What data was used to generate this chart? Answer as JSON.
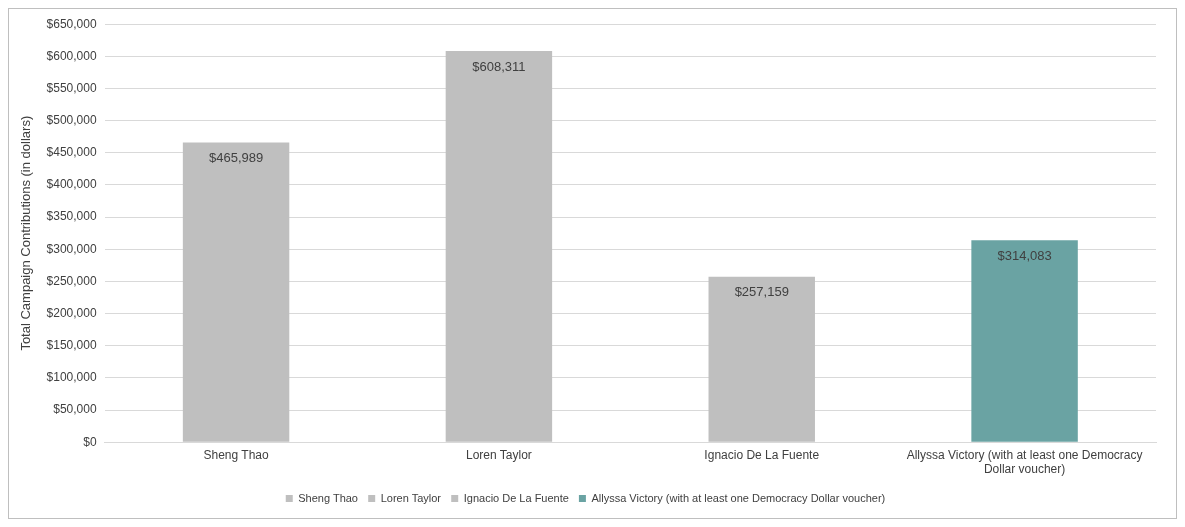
{
  "chart_data": {
    "type": "bar",
    "ylabel": "Total Campaign Contributions (in dollars)",
    "categories": [
      "Sheng Thao",
      "Loren Taylor",
      "Ignacio De La Fuente",
      "Allyssa Victory (with at least one Democracy Dollar voucher)"
    ],
    "series": [
      {
        "name": "Sheng Thao",
        "color": "#bfbfbf",
        "values": [
          465989,
          null,
          null,
          null
        ],
        "value_labels": [
          "$465,989",
          null,
          null,
          null
        ]
      },
      {
        "name": "Loren Taylor",
        "color": "#bfbfbf",
        "values": [
          null,
          608311,
          null,
          null
        ],
        "value_labels": [
          null,
          "$608,311",
          null,
          null
        ]
      },
      {
        "name": "Ignacio De La Fuente",
        "color": "#bfbfbf",
        "values": [
          null,
          null,
          257159,
          null
        ],
        "value_labels": [
          null,
          null,
          "$257,159",
          null
        ]
      },
      {
        "name": "Allyssa Victory (with at least one Democracy Dollar voucher)",
        "color": "#6aa3a3",
        "values": [
          null,
          null,
          null,
          314083
        ],
        "value_labels": [
          null,
          null,
          null,
          "$314,083"
        ]
      }
    ],
    "ylim": [
      0,
      650000
    ],
    "yticks": [
      {
        "value": 0,
        "label": "$0"
      },
      {
        "value": 50000,
        "label": "$50,000"
      },
      {
        "value": 100000,
        "label": "$100,000"
      },
      {
        "value": 150000,
        "label": "$150,000"
      },
      {
        "value": 200000,
        "label": "$200,000"
      },
      {
        "value": 250000,
        "label": "$250,000"
      },
      {
        "value": 300000,
        "label": "$300,000"
      },
      {
        "value": 350000,
        "label": "$350,000"
      },
      {
        "value": 400000,
        "label": "$400,000"
      },
      {
        "value": 450000,
        "label": "$450,000"
      },
      {
        "value": 500000,
        "label": "$500,000"
      },
      {
        "value": 550000,
        "label": "$550,000"
      },
      {
        "value": 600000,
        "label": "$600,000"
      },
      {
        "value": 650000,
        "label": "$650,000"
      }
    ],
    "grid": "y",
    "legend": "bottom"
  }
}
